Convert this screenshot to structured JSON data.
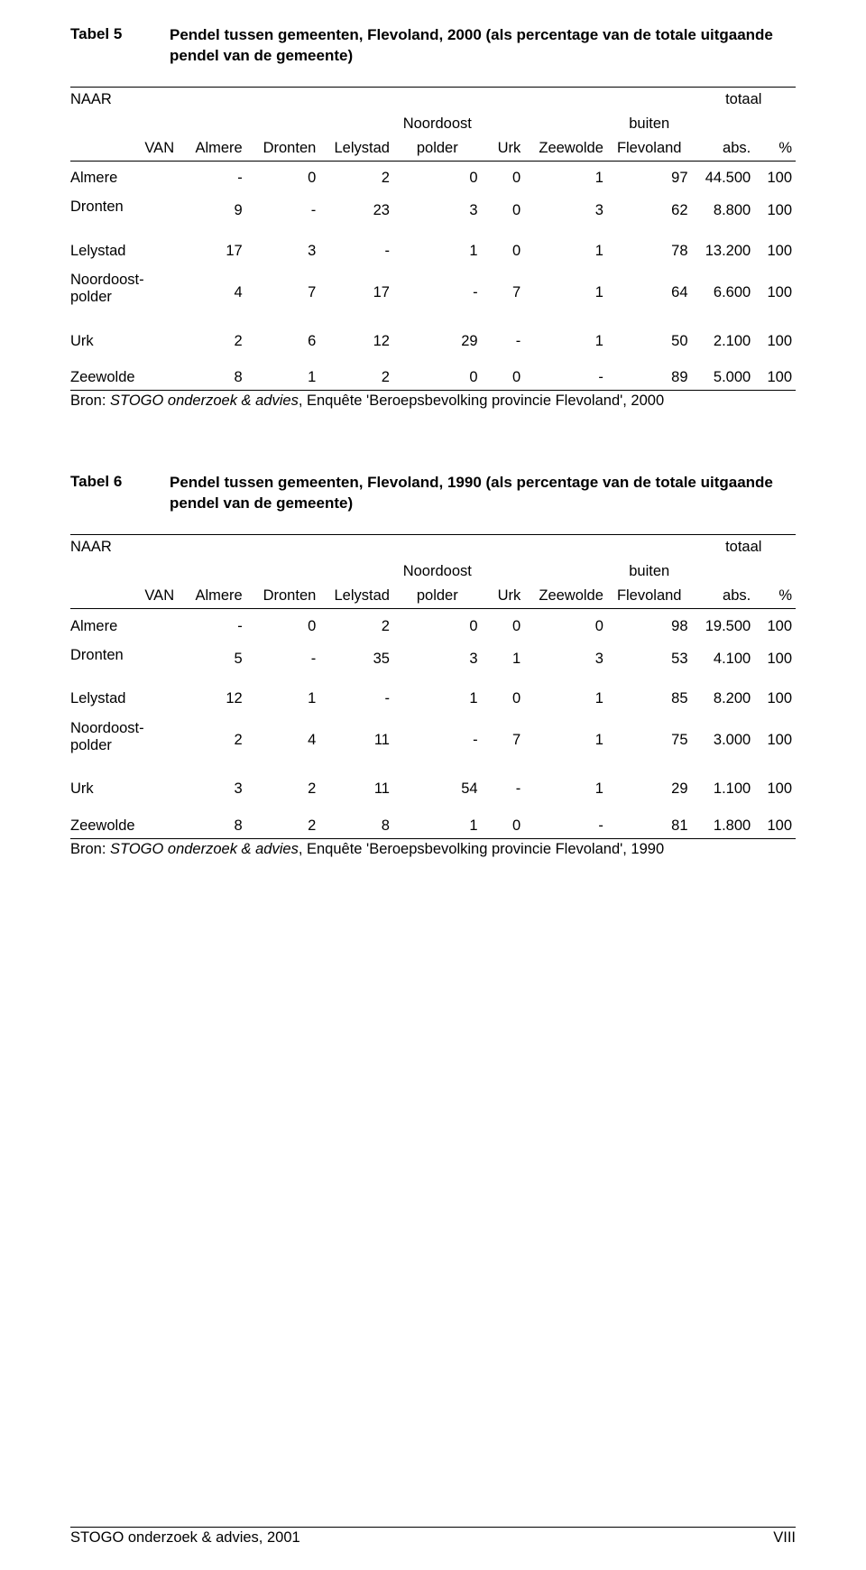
{
  "tables": [
    {
      "label": "Tabel 5",
      "title": "Pendel tussen gemeenten, Flevoland, 2000 (als percentage van de totale uitgaande pendel van de gemeente)",
      "naar": "NAAR",
      "totaal": "totaal",
      "van": "VAN",
      "cols": [
        "Almere",
        "Dronten",
        "Lelystad",
        "Noordoost polder",
        "Urk",
        "Zeewolde",
        "buiten Flevoland",
        "abs.",
        "%"
      ],
      "rows": [
        {
          "label": "Almere",
          "cells": [
            "-",
            "0",
            "2",
            "0",
            "0",
            "1",
            "97",
            "44.500",
            "100"
          ]
        },
        {
          "label": "Dronten",
          "cells": [
            "9",
            "-",
            "23",
            "3",
            "0",
            "3",
            "62",
            "8.800",
            "100"
          ]
        },
        {
          "label": "Lelystad",
          "cells": [
            "17",
            "3",
            "-",
            "1",
            "0",
            "1",
            "78",
            "13.200",
            "100"
          ]
        },
        {
          "label": "Noordoost-\npolder",
          "cells": [
            "4",
            "7",
            "17",
            "-",
            "7",
            "1",
            "64",
            "6.600",
            "100"
          ]
        },
        {
          "label": "Urk",
          "cells": [
            "2",
            "6",
            "12",
            "29",
            "-",
            "1",
            "50",
            "2.100",
            "100"
          ]
        },
        {
          "label": "Zeewolde",
          "cells": [
            "8",
            "1",
            "2",
            "0",
            "0",
            "-",
            "89",
            "5.000",
            "100"
          ]
        }
      ],
      "source_pre": "Bron: ",
      "source_it": "STOGO onderzoek & advies",
      "source_post": ", Enquête 'Beroepsbevolking provincie Flevoland', 2000"
    },
    {
      "label": "Tabel 6",
      "title": "Pendel tussen gemeenten, Flevoland, 1990 (als percentage van de totale uitgaande pendel van de gemeente)",
      "naar": "NAAR",
      "totaal": "totaal",
      "van": "VAN",
      "cols": [
        "Almere",
        "Dronten",
        "Lelystad",
        "Noordoost polder",
        "Urk",
        "Zeewolde",
        "buiten Flevoland",
        "abs.",
        "%"
      ],
      "rows": [
        {
          "label": "Almere",
          "cells": [
            "-",
            "0",
            "2",
            "0",
            "0",
            "0",
            "98",
            "19.500",
            "100"
          ]
        },
        {
          "label": "Dronten",
          "cells": [
            "5",
            "-",
            "35",
            "3",
            "1",
            "3",
            "53",
            "4.100",
            "100"
          ]
        },
        {
          "label": "Lelystad",
          "cells": [
            "12",
            "1",
            "-",
            "1",
            "0",
            "1",
            "85",
            "8.200",
            "100"
          ]
        },
        {
          "label": "Noordoost-\npolder",
          "cells": [
            "2",
            "4",
            "11",
            "-",
            "7",
            "1",
            "75",
            "3.000",
            "100"
          ]
        },
        {
          "label": "Urk",
          "cells": [
            "3",
            "2",
            "11",
            "54",
            "-",
            "1",
            "29",
            "1.100",
            "100"
          ]
        },
        {
          "label": "Zeewolde",
          "cells": [
            "8",
            "2",
            "8",
            "1",
            "0",
            "-",
            "81",
            "1.800",
            "100"
          ]
        }
      ],
      "source_pre": "Bron: ",
      "source_it": "STOGO onderzoek & advies",
      "source_post": ", Enquête 'Beroepsbevolking provincie Flevoland', 1990"
    }
  ],
  "footer": {
    "left_it": "STOGO onderzoek & advies",
    "left_post": ", 2001",
    "right": "VIII"
  }
}
